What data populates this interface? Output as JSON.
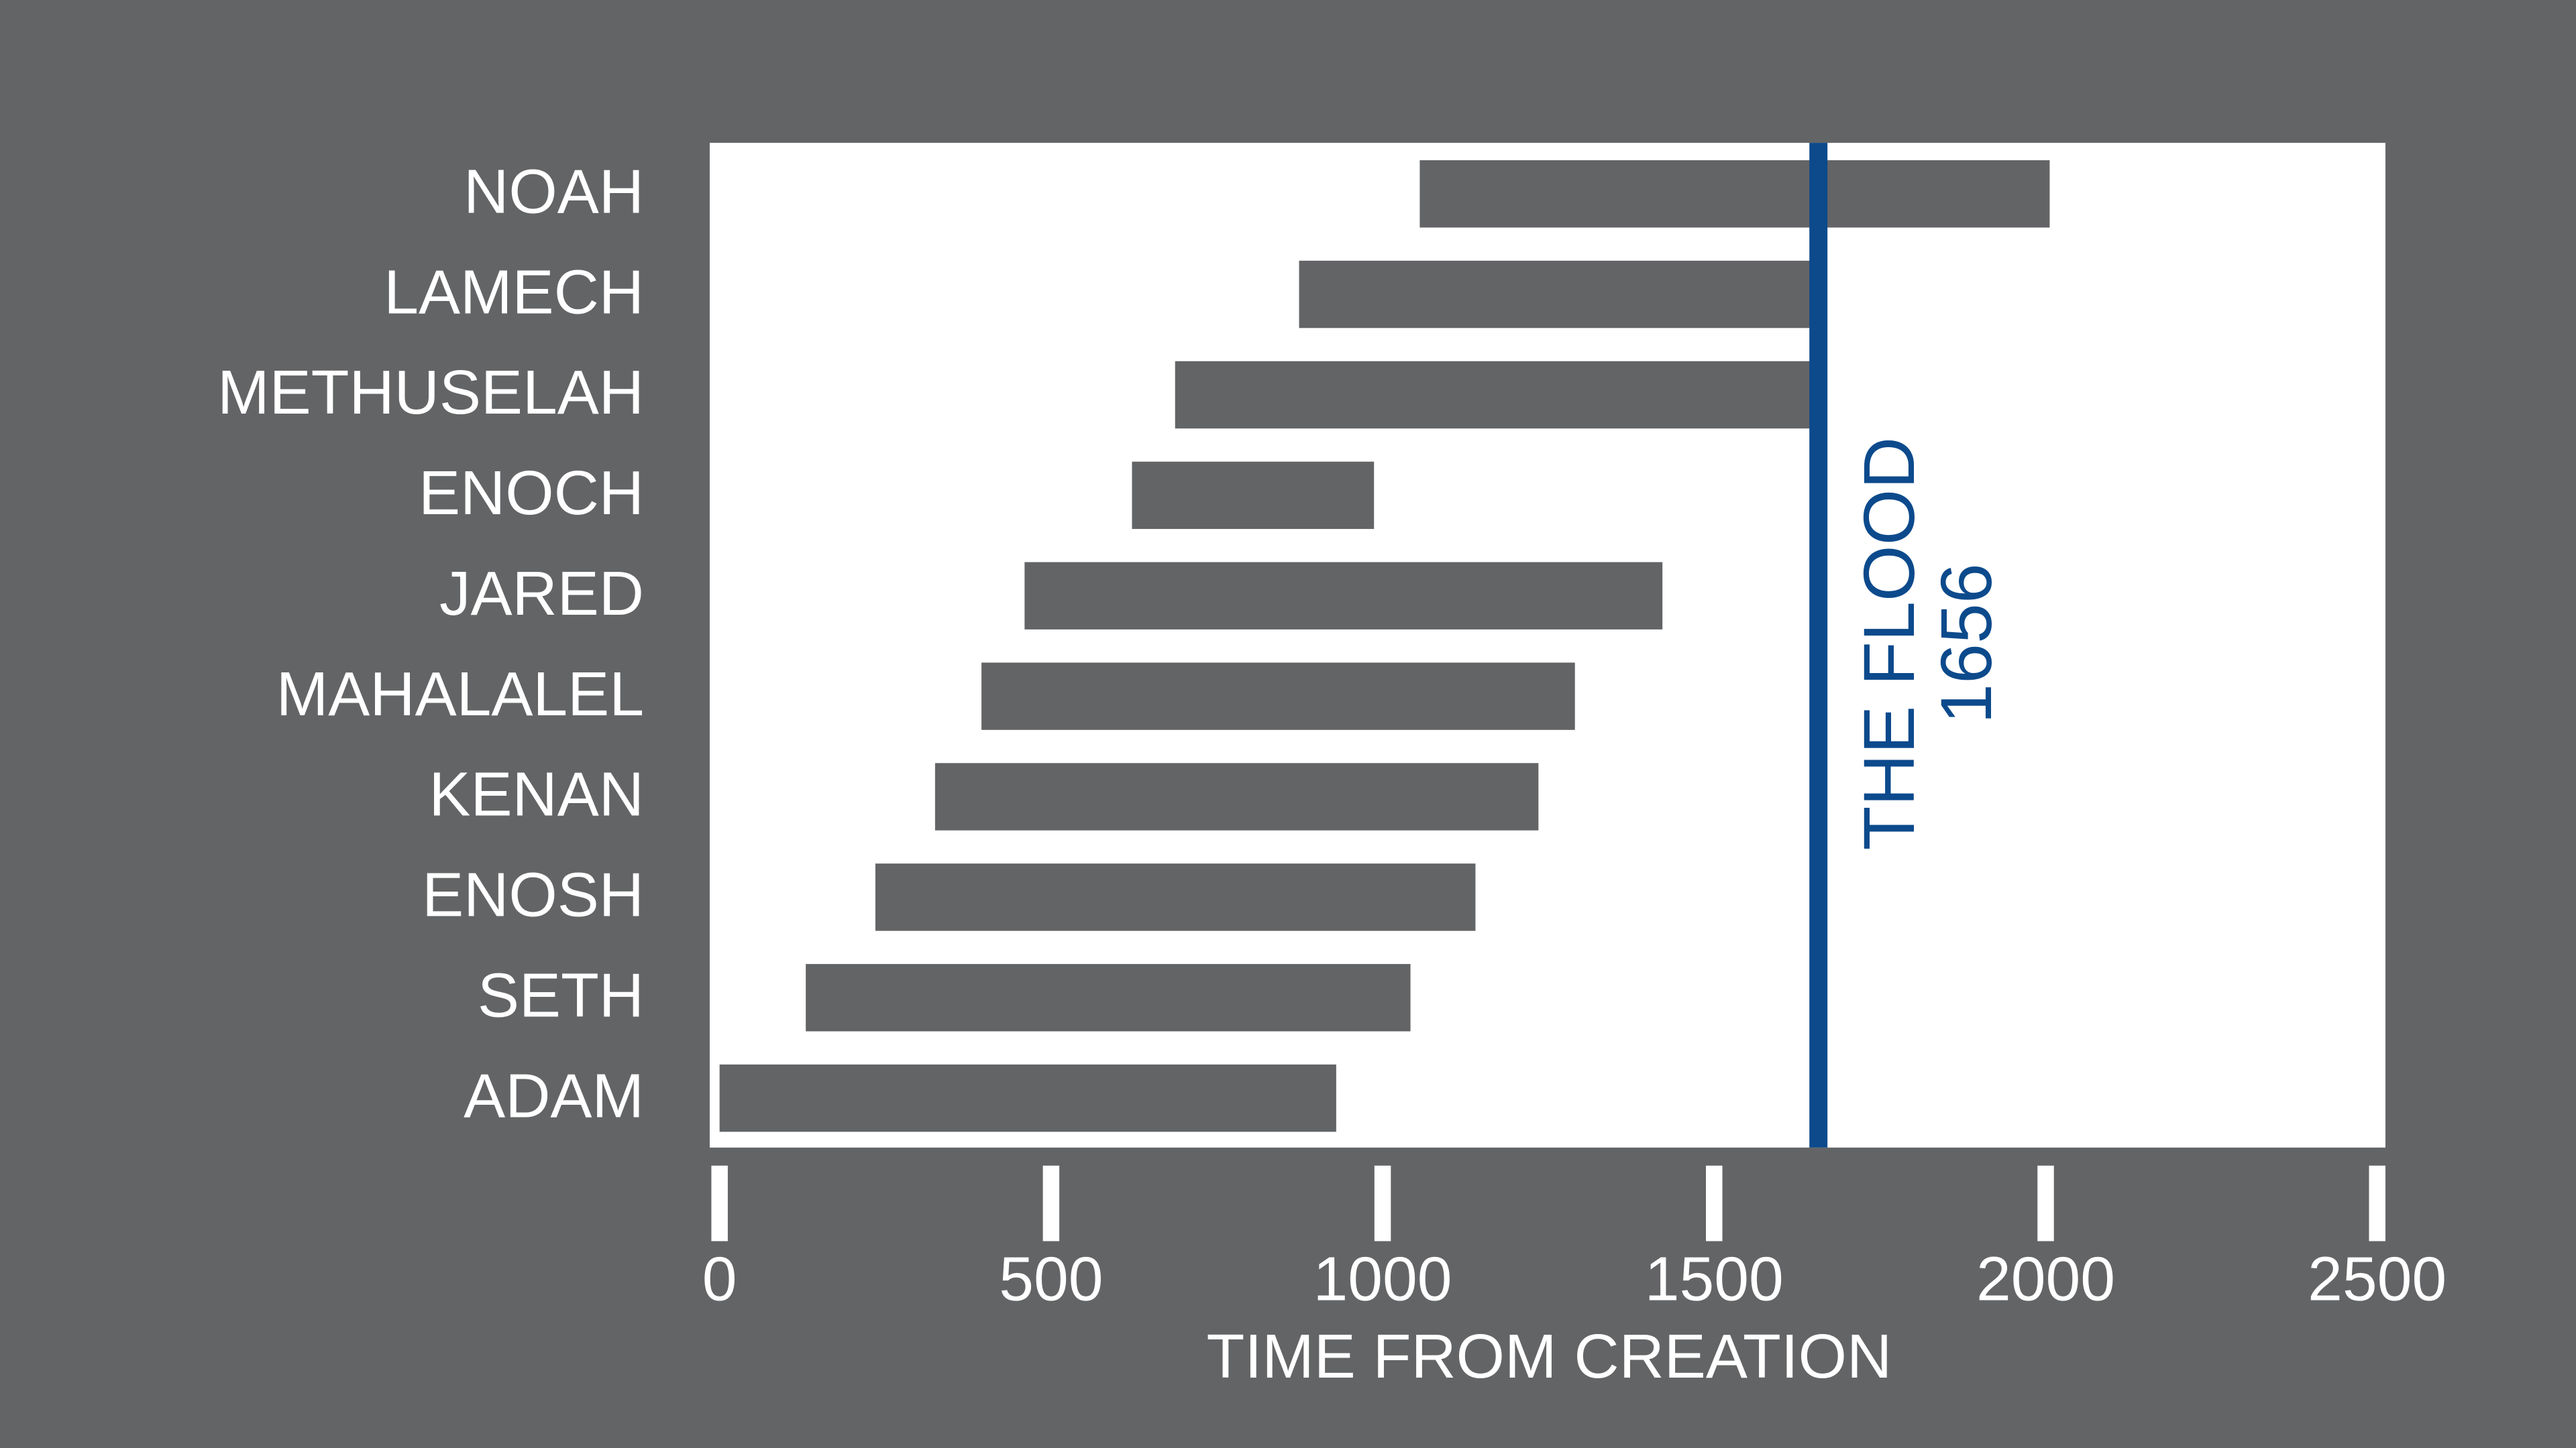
{
  "chart_data": {
    "type": "range-bar",
    "categories": [
      "NOAH",
      "LAMECH",
      "METHUSELAH",
      "ENOCH",
      "JARED",
      "MAHALALEL",
      "KENAN",
      "ENOSH",
      "SETH",
      "ADAM"
    ],
    "values": [
      [
        1056,
        2006
      ],
      [
        874,
        1651
      ],
      [
        687,
        1656
      ],
      [
        622,
        987
      ],
      [
        460,
        1422
      ],
      [
        395,
        1290
      ],
      [
        325,
        1235
      ],
      [
        235,
        1140
      ],
      [
        130,
        1042
      ],
      [
        0,
        930
      ]
    ],
    "color": "#636466",
    "xlim": [
      0,
      2500
    ],
    "xticks": [
      0,
      500,
      1000,
      1500,
      2000,
      2500
    ],
    "xlabel": "TIME FROM CREATION",
    "annotation": {
      "x": 1656,
      "label": "THE FLOOD",
      "color": "#0c4a8c"
    }
  }
}
